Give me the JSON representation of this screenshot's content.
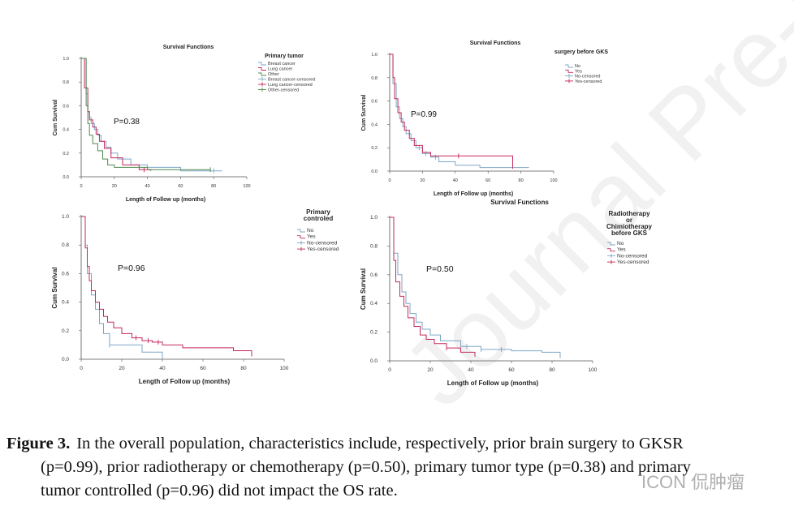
{
  "caption": {
    "label": "Figure 3.",
    "line1": "In the overall population, characteristics include, respectively, prior brain surgery to GKSR",
    "line2": "(p=0.99), prior radiotherapy or chemotherapy (p=0.50), primary tumor type (p=0.38) and primary",
    "line3": "tumor controlled  (p=0.96) did not impact the OS rate."
  },
  "watermark": {
    "diagonal": "Journal Pre-proof",
    "corner": "ICON 侃肿瘤"
  },
  "colors": {
    "blue": "#7ea6c6",
    "red": "#c5285a",
    "green": "#4f8a4f",
    "axis": "#555555"
  },
  "chart_data": [
    {
      "type": "line",
      "title": "Survival Functions",
      "xlabel": "Length of Follow up (months)",
      "ylabel": "Cum Survival",
      "annotation": "P=0.38",
      "xlim": [
        0,
        100
      ],
      "ylim": [
        0,
        1
      ],
      "xticks": [
        "0",
        "20",
        "40",
        "60",
        "80",
        "100"
      ],
      "yticks": [
        "0.0",
        "0.2",
        "0.4",
        "0.6",
        "0.8",
        "1.0"
      ],
      "legend_title": "Primary tumor",
      "legend": [
        {
          "label": "Breast cancer",
          "color": "#7ea6c6",
          "mark": "line"
        },
        {
          "label": "Lung cancer",
          "color": "#c5285a",
          "mark": "line"
        },
        {
          "label": "Other",
          "color": "#4f8a4f",
          "mark": "line"
        },
        {
          "label": "Breast cancer-censored",
          "color": "#7ea6c6",
          "mark": "plus"
        },
        {
          "label": "Lung cancer-censored",
          "color": "#c5285a",
          "mark": "plus"
        },
        {
          "label": "Other-censored",
          "color": "#4f8a4f",
          "mark": "plus"
        }
      ],
      "series": [
        {
          "name": "Breast cancer",
          "color": "#7ea6c6",
          "x": [
            0,
            3,
            4,
            5,
            6,
            8,
            10,
            12,
            15,
            18,
            22,
            30,
            40,
            60,
            85
          ],
          "y": [
            1,
            0.7,
            0.55,
            0.5,
            0.45,
            0.4,
            0.35,
            0.3,
            0.25,
            0.2,
            0.15,
            0.1,
            0.08,
            0.05,
            0.05
          ],
          "censored_x": [
            80
          ]
        },
        {
          "name": "Lung cancer",
          "color": "#c5285a",
          "x": [
            0,
            2,
            4,
            5,
            7,
            9,
            11,
            14,
            18,
            25,
            35,
            42
          ],
          "y": [
            1,
            0.75,
            0.55,
            0.48,
            0.42,
            0.36,
            0.3,
            0.24,
            0.16,
            0.1,
            0.06,
            0.05
          ],
          "censored_x": [
            38
          ]
        },
        {
          "name": "Other",
          "color": "#4f8a4f",
          "x": [
            0,
            3,
            4,
            5,
            7,
            10,
            13,
            16,
            20,
            28,
            40,
            78
          ],
          "y": [
            1,
            0.6,
            0.45,
            0.35,
            0.28,
            0.22,
            0.15,
            0.1,
            0.08,
            0.08,
            0.06,
            0.06
          ],
          "censored_x": [
            78
          ]
        }
      ]
    },
    {
      "type": "line",
      "title": "Survival Functions",
      "xlabel": "Length of Follow up (months)",
      "ylabel": "Cum Survival",
      "annotation": "P=0.99",
      "xlim": [
        0,
        100
      ],
      "ylim": [
        0,
        1
      ],
      "xticks": [
        "0",
        "20",
        "40",
        "60",
        "80",
        "100"
      ],
      "yticks": [
        "0.0",
        "0.2",
        "0.4",
        "0.6",
        "0.8",
        "1.0"
      ],
      "legend_title": "surgery before GKS",
      "legend": [
        {
          "label": "No",
          "color": "#7ea6c6",
          "mark": "line"
        },
        {
          "label": "Yes",
          "color": "#c5285a",
          "mark": "line"
        },
        {
          "label": "No-censored",
          "color": "#7ea6c6",
          "mark": "plus"
        },
        {
          "label": "Yes-censored",
          "color": "#c5285a",
          "mark": "plus"
        }
      ],
      "series": [
        {
          "name": "No",
          "color": "#7ea6c6",
          "x": [
            0,
            2,
            4,
            6,
            8,
            10,
            13,
            16,
            20,
            25,
            30,
            40,
            55,
            85
          ],
          "y": [
            1,
            0.75,
            0.55,
            0.45,
            0.38,
            0.32,
            0.26,
            0.2,
            0.15,
            0.12,
            0.08,
            0.05,
            0.03,
            0.03
          ],
          "censored_x": [
            18,
            22,
            28
          ]
        },
        {
          "name": "Yes",
          "color": "#c5285a",
          "x": [
            0,
            2,
            3,
            5,
            7,
            9,
            12,
            15,
            20,
            25,
            75
          ],
          "y": [
            1,
            0.8,
            0.62,
            0.5,
            0.42,
            0.35,
            0.28,
            0.22,
            0.16,
            0.13,
            0.02
          ],
          "censored_x": [
            42
          ]
        }
      ]
    },
    {
      "type": "line",
      "title": "",
      "xlabel": "Length of Follow up (months)",
      "ylabel": "Cum Survival",
      "annotation": "P=0.96",
      "xlim": [
        0,
        100
      ],
      "ylim": [
        0,
        1
      ],
      "xticks": [
        "0",
        "20",
        "40",
        "60",
        "80",
        "100"
      ],
      "yticks": [
        "0.0",
        "0.2",
        "0.4",
        "0.6",
        "0.8",
        "1.0"
      ],
      "legend_title": "Primary controled",
      "legend": [
        {
          "label": "No",
          "color": "#7ea6c6",
          "mark": "line"
        },
        {
          "label": "Yes",
          "color": "#c5285a",
          "mark": "line"
        },
        {
          "label": "No-censored",
          "color": "#7ea6c6",
          "mark": "plus"
        },
        {
          "label": "Yes-censored",
          "color": "#c5285a",
          "mark": "plus"
        }
      ],
      "series": [
        {
          "name": "No",
          "color": "#7ea6c6",
          "x": [
            0,
            2,
            3,
            5,
            7,
            9,
            11,
            14,
            20,
            30,
            40
          ],
          "y": [
            1,
            0.8,
            0.6,
            0.45,
            0.35,
            0.25,
            0.18,
            0.1,
            0.1,
            0.05,
            0.0
          ],
          "censored_x": [
            14
          ]
        },
        {
          "name": "Yes",
          "color": "#c5285a",
          "x": [
            0,
            2,
            3,
            4,
            5,
            7,
            9,
            11,
            13,
            16,
            20,
            25,
            30,
            35,
            40,
            50,
            75,
            84
          ],
          "y": [
            1,
            0.78,
            0.65,
            0.55,
            0.48,
            0.4,
            0.35,
            0.3,
            0.26,
            0.22,
            0.18,
            0.15,
            0.13,
            0.12,
            0.1,
            0.08,
            0.06,
            0.02
          ],
          "censored_x": [
            27,
            33,
            38
          ]
        }
      ]
    },
    {
      "type": "line",
      "title": "Survival Functions",
      "xlabel": "Length of Follow up (months)",
      "ylabel": "Cum Survival",
      "annotation": "P=0.50",
      "xlim": [
        0,
        100
      ],
      "ylim": [
        0,
        1
      ],
      "xticks": [
        "0",
        "20",
        "40",
        "60",
        "80",
        "100"
      ],
      "yticks": [
        "0.0",
        "0.2",
        "0.4",
        "0.6",
        "0.8",
        "1.0"
      ],
      "legend_title": "Radiotherapy or Chimiotherapy before GKS",
      "legend": [
        {
          "label": "No",
          "color": "#7ea6c6",
          "mark": "line"
        },
        {
          "label": "Yes",
          "color": "#c5285a",
          "mark": "line"
        },
        {
          "label": "No-censored",
          "color": "#7ea6c6",
          "mark": "plus"
        },
        {
          "label": "Yes-censored",
          "color": "#c5285a",
          "mark": "plus"
        }
      ],
      "series": [
        {
          "name": "No",
          "color": "#7ea6c6",
          "x": [
            0,
            2,
            4,
            6,
            8,
            10,
            13,
            16,
            20,
            25,
            35,
            45,
            60,
            75,
            84
          ],
          "y": [
            1,
            0.75,
            0.6,
            0.48,
            0.4,
            0.33,
            0.27,
            0.22,
            0.18,
            0.14,
            0.1,
            0.08,
            0.07,
            0.06,
            0.02
          ],
          "censored_x": [
            38,
            45,
            55
          ]
        },
        {
          "name": "Yes",
          "color": "#c5285a",
          "x": [
            0,
            2,
            3,
            5,
            7,
            9,
            12,
            15,
            18,
            22,
            28,
            35,
            42
          ],
          "y": [
            1,
            0.7,
            0.55,
            0.45,
            0.38,
            0.3,
            0.24,
            0.18,
            0.15,
            0.12,
            0.09,
            0.06,
            0.03
          ],
          "censored_x": [
            28
          ]
        }
      ]
    }
  ]
}
